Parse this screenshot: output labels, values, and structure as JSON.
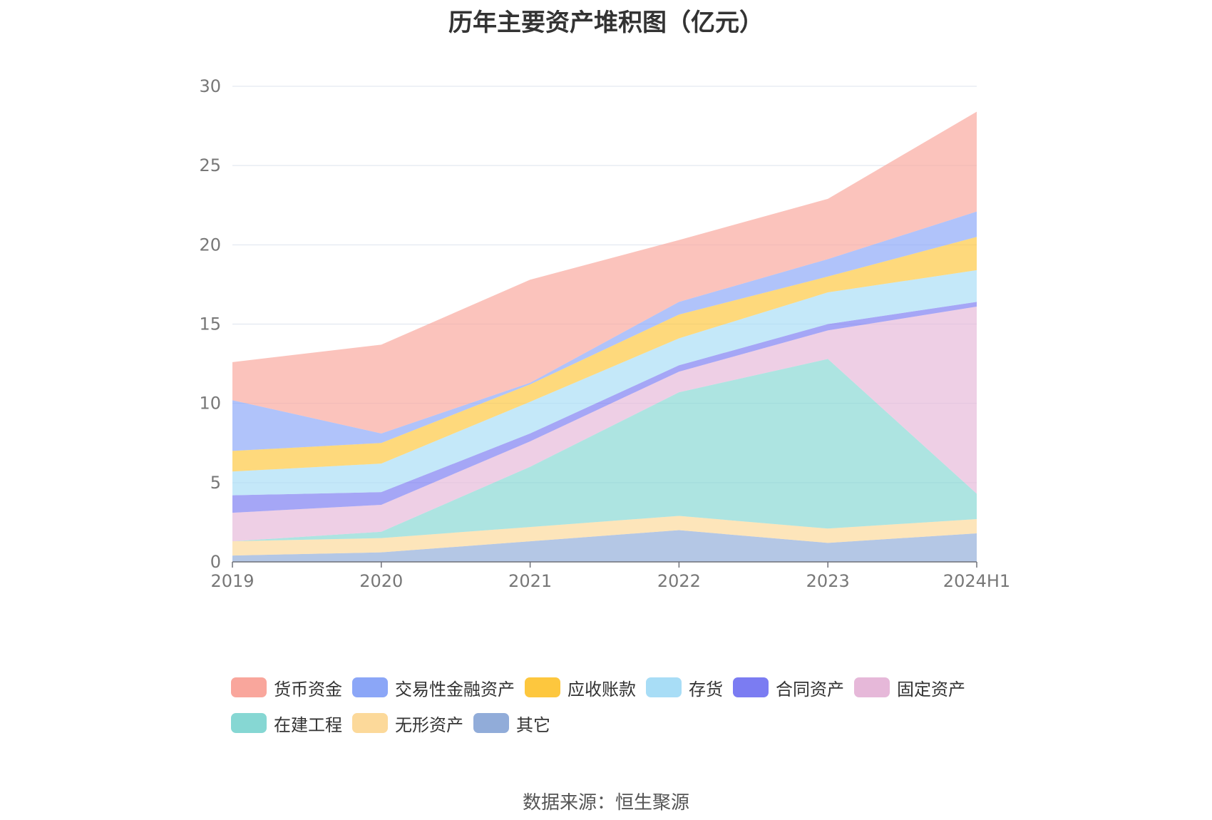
{
  "chart_data": {
    "type": "area",
    "stacked": true,
    "title": "历年主要资产堆积图（亿元）",
    "categories": [
      "2019",
      "2020",
      "2021",
      "2022",
      "2023",
      "2024H1"
    ],
    "ylim": [
      0,
      30
    ],
    "yticks": [
      "0",
      "5",
      "10",
      "15",
      "20",
      "25",
      "30"
    ],
    "grid": true,
    "legend_position": "bottom",
    "series": [
      {
        "name": "其它",
        "color": "#91acd9",
        "values": [
          0.4,
          0.6,
          1.3,
          2.0,
          1.2,
          1.8
        ]
      },
      {
        "name": "无形资产",
        "color": "#fcd99a",
        "values": [
          0.9,
          0.9,
          0.9,
          0.9,
          0.9,
          0.9
        ]
      },
      {
        "name": "在建工程",
        "color": "#86d7d3",
        "values": [
          0.0,
          0.4,
          3.8,
          7.8,
          10.7,
          1.6
        ]
      },
      {
        "name": "固定资产",
        "color": "#e6b8d9",
        "values": [
          1.8,
          1.7,
          1.6,
          1.3,
          1.8,
          11.8
        ]
      },
      {
        "name": "合同资产",
        "color": "#7b7cf2",
        "values": [
          1.1,
          0.8,
          0.5,
          0.4,
          0.4,
          0.3
        ]
      },
      {
        "name": "存货",
        "color": "#a8ddf6",
        "values": [
          1.5,
          1.8,
          2.0,
          1.7,
          2.0,
          2.0
        ]
      },
      {
        "name": "应收账款",
        "color": "#fdc73e",
        "values": [
          1.3,
          1.3,
          1.1,
          1.5,
          1.0,
          2.1
        ]
      },
      {
        "name": "交易性金融资产",
        "color": "#8ba6f7",
        "values": [
          3.2,
          0.6,
          0.1,
          0.8,
          1.1,
          1.6
        ]
      },
      {
        "name": "货币资金",
        "color": "#f9a69c",
        "values": [
          2.4,
          5.6,
          6.5,
          3.9,
          3.8,
          6.3
        ]
      }
    ],
    "legend_order": [
      "货币资金",
      "交易性金融资产",
      "应收账款",
      "存货",
      "合同资产",
      "固定资产",
      "在建工程",
      "无形资产",
      "其它"
    ]
  },
  "source_text": "数据来源：恒生聚源"
}
